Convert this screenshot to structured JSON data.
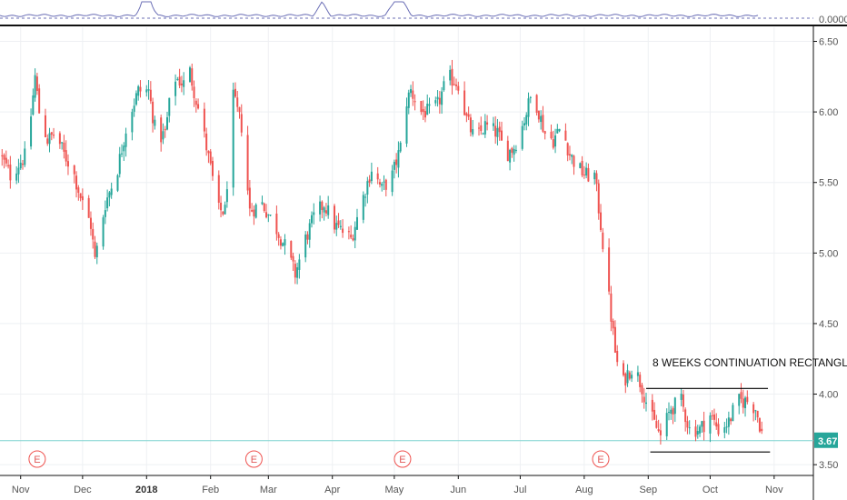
{
  "colors": {
    "up": "#26a69a",
    "down": "#ef5350",
    "grid": "#eef0f3",
    "axis_line": "#111111",
    "indicator": "#6b6fb6",
    "price_line": "#7fd3d0",
    "price_tag": "#26a69a",
    "event": "#ef5350",
    "trend_line": "#000000"
  },
  "indicator_axis_label": "0.0000",
  "annotation": "8 WEEKS CONTINUATION RECTANGL",
  "current_price_label": "3.67",
  "event_marker_label": "E",
  "chart_data": {
    "type": "candlestick",
    "title": "",
    "xlabel": "",
    "ylabel": "",
    "ylim": [
      3.43,
      6.6
    ],
    "y_ticks": [
      "6.50",
      "6.00",
      "5.50",
      "5.00",
      "4.50",
      "4.00",
      "3.50"
    ],
    "y_tick_values": [
      6.5,
      6.0,
      5.5,
      5.0,
      4.5,
      4.0,
      3.5
    ],
    "x_ticks": [
      "Nov",
      "Dec",
      "2018",
      "Feb",
      "Mar",
      "Apr",
      "May",
      "Jun",
      "Jul",
      "Aug",
      "Sep",
      "Oct",
      "Nov"
    ],
    "x_tick_dates": [
      "2017-11-01",
      "2017-12-01",
      "2018-01-01",
      "2018-02-01",
      "2018-03-01",
      "2018-04-01",
      "2018-05-01",
      "2018-06-01",
      "2018-07-01",
      "2018-08-01",
      "2018-09-01",
      "2018-10-01",
      "2018-11-01"
    ],
    "x_range": [
      "2017-10-22",
      "2018-11-20"
    ],
    "grid": true,
    "current_price": 3.67,
    "earnings_dates": [
      "2017-11-09",
      "2018-02-22",
      "2018-05-05",
      "2018-08-09"
    ],
    "close_path": [
      [
        "2017-10-22",
        5.7
      ],
      [
        "2017-10-27",
        5.55
      ],
      [
        "2017-11-01",
        5.65
      ],
      [
        "2017-11-04",
        5.7
      ],
      [
        "2017-11-08",
        6.25
      ],
      [
        "2017-11-10",
        6.0
      ],
      [
        "2017-11-14",
        5.8
      ],
      [
        "2017-11-18",
        5.85
      ],
      [
        "2017-11-22",
        5.7
      ],
      [
        "2017-11-26",
        5.6
      ],
      [
        "2017-12-01",
        5.35
      ],
      [
        "2017-12-05",
        5.2
      ],
      [
        "2017-12-07",
        4.95
      ],
      [
        "2017-12-12",
        5.35
      ],
      [
        "2017-12-18",
        5.6
      ],
      [
        "2017-12-23",
        5.95
      ],
      [
        "2017-12-28",
        6.15
      ],
      [
        "2018-01-02",
        6.15
      ],
      [
        "2018-01-06",
        5.8
      ],
      [
        "2018-01-10",
        5.85
      ],
      [
        "2018-01-14",
        6.25
      ],
      [
        "2018-01-19",
        6.2
      ],
      [
        "2018-01-21",
        6.35
      ],
      [
        "2018-01-24",
        6.15
      ],
      [
        "2018-01-28",
        5.9
      ],
      [
        "2018-02-01",
        5.6
      ],
      [
        "2018-02-05",
        5.3
      ],
      [
        "2018-02-08",
        5.3
      ],
      [
        "2018-02-12",
        6.1
      ],
      [
        "2018-02-16",
        5.9
      ],
      [
        "2018-02-20",
        5.3
      ],
      [
        "2018-02-26",
        5.35
      ],
      [
        "2018-03-04",
        5.2
      ],
      [
        "2018-03-09",
        5.05
      ],
      [
        "2018-03-14",
        4.85
      ],
      [
        "2018-03-19",
        5.1
      ],
      [
        "2018-03-23",
        5.25
      ],
      [
        "2018-03-28",
        5.35
      ],
      [
        "2018-04-02",
        5.2
      ],
      [
        "2018-04-06",
        5.15
      ],
      [
        "2018-04-10",
        5.1
      ],
      [
        "2018-04-16",
        5.4
      ],
      [
        "2018-04-20",
        5.6
      ],
      [
        "2018-04-25",
        5.45
      ],
      [
        "2018-04-30",
        5.55
      ],
      [
        "2018-05-04",
        5.75
      ],
      [
        "2018-05-05",
        6.0
      ],
      [
        "2018-05-09",
        6.15
      ],
      [
        "2018-05-14",
        6.0
      ],
      [
        "2018-05-18",
        6.0
      ],
      [
        "2018-05-22",
        6.05
      ],
      [
        "2018-05-27",
        6.25
      ],
      [
        "2018-06-01",
        6.2
      ],
      [
        "2018-06-05",
        5.95
      ],
      [
        "2018-06-09",
        5.8
      ],
      [
        "2018-06-14",
        5.9
      ],
      [
        "2018-06-20",
        5.85
      ],
      [
        "2018-06-24",
        5.7
      ],
      [
        "2018-06-28",
        5.75
      ],
      [
        "2018-07-02",
        5.9
      ],
      [
        "2018-07-06",
        6.1
      ],
      [
        "2018-07-09",
        6.05
      ],
      [
        "2018-07-13",
        5.85
      ],
      [
        "2018-07-17",
        5.8
      ],
      [
        "2018-07-21",
        5.9
      ],
      [
        "2018-07-25",
        5.7
      ],
      [
        "2018-07-29",
        5.6
      ],
      [
        "2018-08-02",
        5.55
      ],
      [
        "2018-08-06",
        5.55
      ],
      [
        "2018-08-09",
        5.2
      ],
      [
        "2018-08-12",
        4.8
      ],
      [
        "2018-08-16",
        4.3
      ],
      [
        "2018-08-19",
        4.05
      ],
      [
        "2018-08-22",
        4.15
      ],
      [
        "2018-08-25",
        4.2
      ],
      [
        "2018-08-29",
        4.05
      ],
      [
        "2018-09-02",
        3.85
      ],
      [
        "2018-09-07",
        3.7
      ],
      [
        "2018-09-12",
        3.9
      ],
      [
        "2018-09-17",
        3.95
      ],
      [
        "2018-09-21",
        3.75
      ],
      [
        "2018-09-26",
        3.75
      ],
      [
        "2018-10-01",
        3.85
      ],
      [
        "2018-10-05",
        3.75
      ],
      [
        "2018-10-10",
        3.8
      ],
      [
        "2018-10-14",
        3.95
      ],
      [
        "2018-10-19",
        3.95
      ],
      [
        "2018-10-23",
        3.9
      ],
      [
        "2018-10-27",
        3.67
      ]
    ],
    "rectangle_top": {
      "from": "2018-08-31",
      "to": "2018-10-29",
      "value": 4.04
    },
    "rectangle_bottom": {
      "from": "2018-09-02",
      "to": "2018-10-30",
      "value": 3.59
    },
    "indicator_spikes": [
      "2017-12-31",
      "2018-01-02",
      "2018-03-27",
      "2018-05-01",
      "2018-05-05"
    ]
  }
}
